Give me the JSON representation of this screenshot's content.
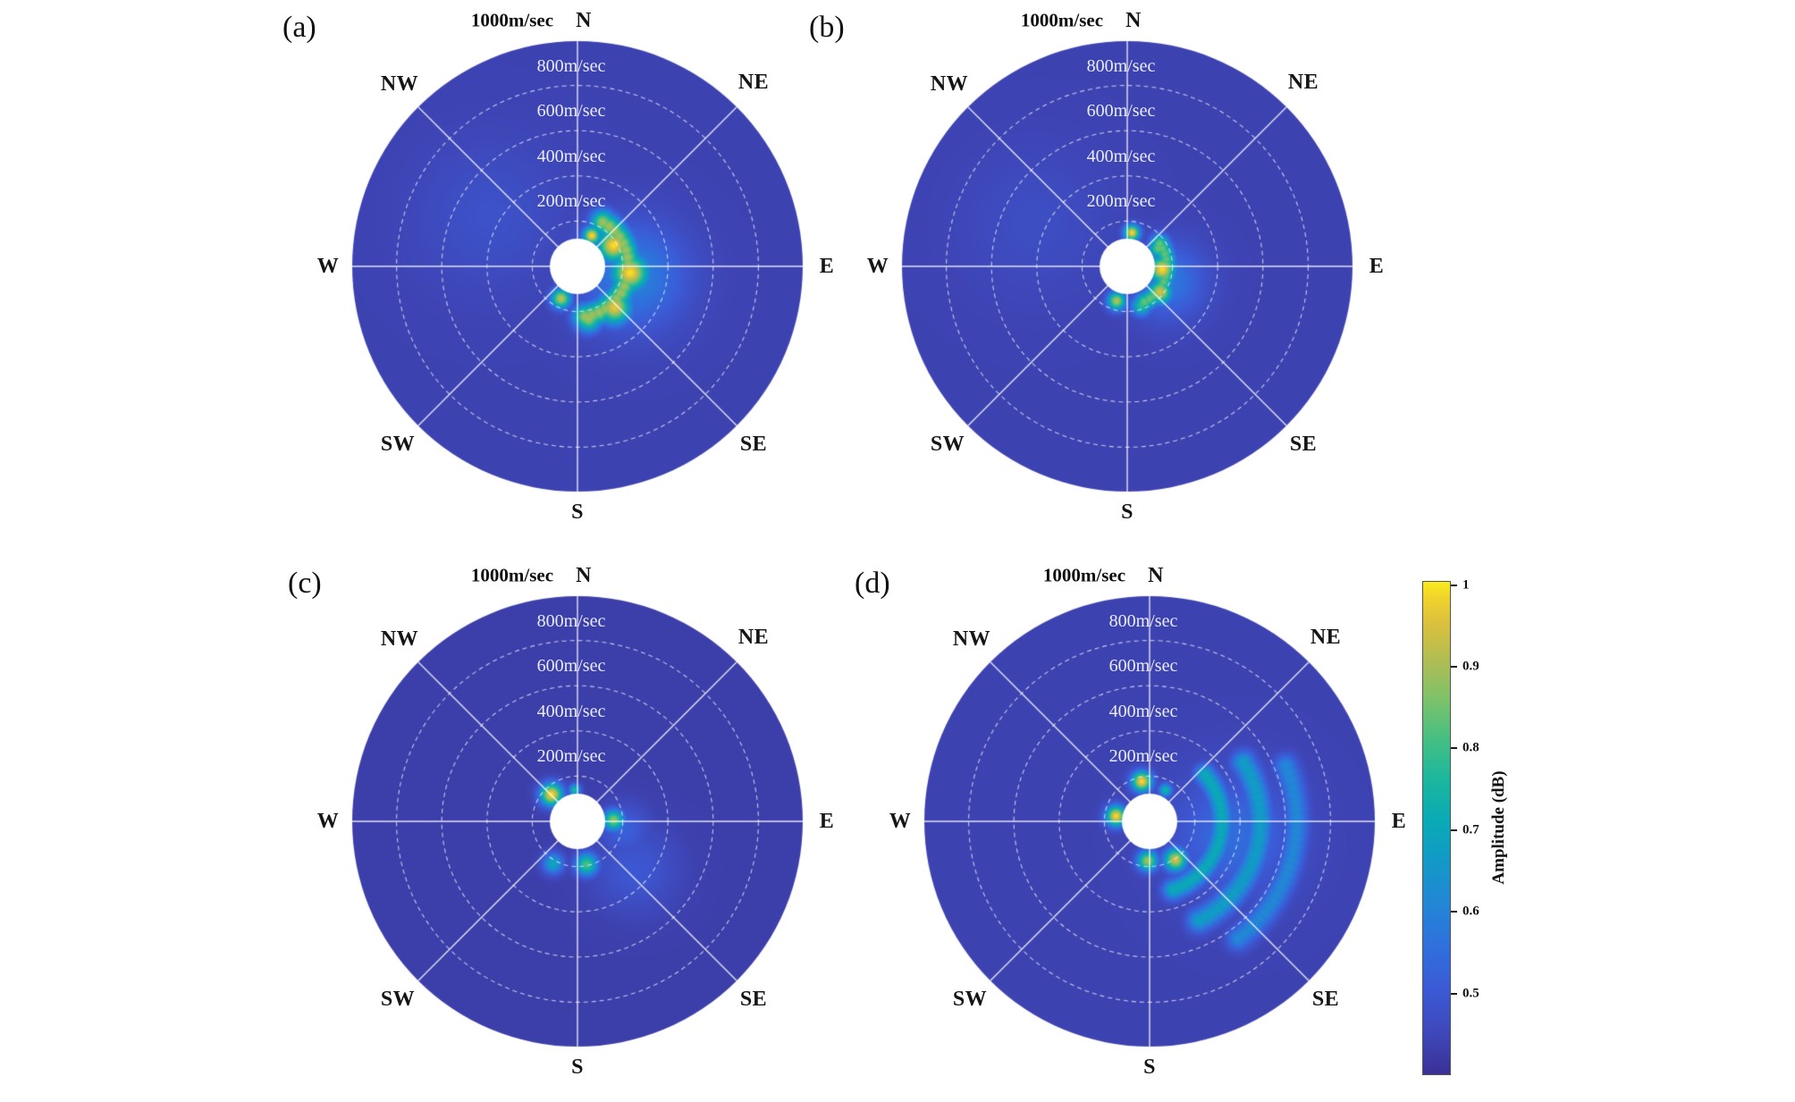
{
  "panel_text": {
    "compass": [
      "N",
      "NE",
      "E",
      "SE",
      "S",
      "SW",
      "W",
      "NW"
    ],
    "rings": [
      "200m/sec",
      "400m/sec",
      "600m/sec",
      "800m/sec"
    ],
    "outer": "1000m/sec"
  },
  "chart_data": {
    "type": "heatmap",
    "subtype": "polar-directional-velocity-amplitude",
    "angular_axis": {
      "labels": [
        "N",
        "NE",
        "E",
        "SE",
        "S",
        "SW",
        "W",
        "NW"
      ],
      "degrees": [
        0,
        45,
        90,
        135,
        180,
        225,
        270,
        315
      ]
    },
    "radial_axis": {
      "unit": "m/sec",
      "rings": [
        200,
        400,
        600,
        800
      ],
      "max": 1000
    },
    "amplitude_unit": "dB",
    "grid": {
      "radial_lines_deg": [
        0,
        45,
        90,
        135,
        180,
        225,
        270,
        315
      ],
      "dashed_rings": [
        200,
        400,
        600,
        800
      ]
    },
    "colormap_stops": [
      [
        0.0,
        "#3a3096"
      ],
      [
        0.08,
        "#3e47b8"
      ],
      [
        0.17,
        "#3c59d5"
      ],
      [
        0.26,
        "#2f70dd"
      ],
      [
        0.35,
        "#2287d5"
      ],
      [
        0.44,
        "#119bc6"
      ],
      [
        0.52,
        "#0aabb4"
      ],
      [
        0.6,
        "#1cb79e"
      ],
      [
        0.68,
        "#45bf83"
      ],
      [
        0.76,
        "#7cc26a"
      ],
      [
        0.84,
        "#b0bd54"
      ],
      [
        0.92,
        "#ddc13c"
      ],
      [
        0.97,
        "#f2d42b"
      ],
      [
        1.0,
        "#f8ec1c"
      ]
    ],
    "colorbar": {
      "title": "Amplitude (dB)",
      "vmin": 0.4,
      "vmax": 1.005,
      "ticks": [
        {
          "label": "1",
          "value": 1.0
        },
        {
          "label": "0.9",
          "value": 0.9
        },
        {
          "label": "0.8",
          "value": 0.8
        },
        {
          "label": "0.7",
          "value": 0.7
        },
        {
          "label": "0.6",
          "value": 0.6
        },
        {
          "label": "0.5",
          "value": 0.5
        }
      ]
    },
    "panels": [
      {
        "label": "(a)",
        "base_amplitude": 0.44,
        "hotspots": [
          {
            "angle_deg": 25,
            "radius_mps": 150,
            "size_mps": 40,
            "amplitude": 1.0
          },
          {
            "angle_deg": 60,
            "radius_mps": 185,
            "size_mps": 75,
            "amplitude": 1.0
          },
          {
            "angle_deg": 97,
            "radius_mps": 235,
            "size_mps": 85,
            "amplitude": 1.0
          },
          {
            "angle_deg": 138,
            "radius_mps": 245,
            "size_mps": 75,
            "amplitude": 0.97
          },
          {
            "angle_deg": 168,
            "radius_mps": 235,
            "size_mps": 60,
            "amplitude": 0.9
          },
          {
            "angle_deg": 207,
            "radius_mps": 160,
            "size_mps": 45,
            "amplitude": 0.93
          },
          {
            "angle_deg": 45,
            "radius_mps": 160,
            "size_mps": 120,
            "amplitude": 0.55
          },
          {
            "angle_deg": 100,
            "radius_mps": 250,
            "size_mps": 240,
            "amplitude": 0.6
          },
          {
            "angle_deg": 300,
            "radius_mps": 450,
            "size_mps": 330,
            "amplitude": 0.48
          }
        ],
        "arcs": [
          {
            "angle_start": 30,
            "angle_end": 175,
            "radius_mps": 225,
            "width_mps": 110,
            "amplitude": 0.9
          }
        ]
      },
      {
        "label": "(b)",
        "base_amplitude": 0.44,
        "hotspots": [
          {
            "angle_deg": 8,
            "radius_mps": 150,
            "size_mps": 36,
            "amplitude": 1.0
          },
          {
            "angle_deg": 60,
            "radius_mps": 160,
            "size_mps": 45,
            "amplitude": 0.85
          },
          {
            "angle_deg": 95,
            "radius_mps": 155,
            "size_mps": 60,
            "amplitude": 1.0
          },
          {
            "angle_deg": 128,
            "radius_mps": 185,
            "size_mps": 55,
            "amplitude": 0.95
          },
          {
            "angle_deg": 160,
            "radius_mps": 185,
            "size_mps": 45,
            "amplitude": 0.8
          },
          {
            "angle_deg": 197,
            "radius_mps": 160,
            "size_mps": 42,
            "amplitude": 0.92
          },
          {
            "angle_deg": 110,
            "radius_mps": 190,
            "size_mps": 170,
            "amplitude": 0.58
          },
          {
            "angle_deg": 295,
            "radius_mps": 450,
            "size_mps": 330,
            "amplitude": 0.47
          }
        ],
        "arcs": [
          {
            "angle_start": 55,
            "angle_end": 160,
            "radius_mps": 175,
            "width_mps": 85,
            "amplitude": 0.85
          }
        ]
      },
      {
        "label": "(c)",
        "base_amplitude": 0.43,
        "hotspots": [
          {
            "angle_deg": 316,
            "radius_mps": 165,
            "size_mps": 52,
            "amplitude": 1.0
          },
          {
            "angle_deg": 88,
            "radius_mps": 160,
            "size_mps": 48,
            "amplitude": 0.88
          },
          {
            "angle_deg": 168,
            "radius_mps": 195,
            "size_mps": 52,
            "amplitude": 0.82
          },
          {
            "angle_deg": 210,
            "radius_mps": 215,
            "size_mps": 48,
            "amplitude": 0.7
          },
          {
            "angle_deg": 355,
            "radius_mps": 140,
            "size_mps": 26,
            "amplitude": 0.78
          },
          {
            "angle_deg": 100,
            "radius_mps": 210,
            "size_mps": 120,
            "amplitude": 0.52
          },
          {
            "angle_deg": 130,
            "radius_mps": 330,
            "size_mps": 200,
            "amplitude": 0.5
          }
        ],
        "arcs": []
      },
      {
        "label": "(d)",
        "base_amplitude": 0.44,
        "hotspots": [
          {
            "angle_deg": 349,
            "radius_mps": 180,
            "size_mps": 46,
            "amplitude": 1.0
          },
          {
            "angle_deg": 279,
            "radius_mps": 150,
            "size_mps": 46,
            "amplitude": 1.0
          },
          {
            "angle_deg": 183,
            "radius_mps": 175,
            "size_mps": 46,
            "amplitude": 0.9
          },
          {
            "angle_deg": 146,
            "radius_mps": 205,
            "size_mps": 52,
            "amplitude": 0.95
          },
          {
            "angle_deg": 27,
            "radius_mps": 155,
            "size_mps": 30,
            "amplitude": 0.75
          },
          {
            "angle_deg": 100,
            "radius_mps": 380,
            "size_mps": 280,
            "amplitude": 0.55
          }
        ],
        "arcs": [
          {
            "angle_start": 50,
            "angle_end": 165,
            "radius_mps": 320,
            "width_mps": 95,
            "amplitude": 0.72
          },
          {
            "angle_start": 58,
            "angle_end": 155,
            "radius_mps": 490,
            "width_mps": 110,
            "amplitude": 0.68
          },
          {
            "angle_start": 68,
            "angle_end": 145,
            "radius_mps": 650,
            "width_mps": 110,
            "amplitude": 0.62
          }
        ]
      }
    ]
  }
}
